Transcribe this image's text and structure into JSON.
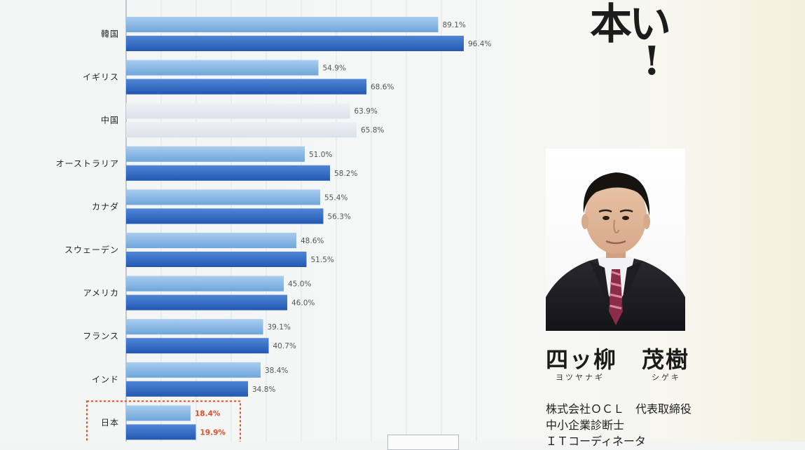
{
  "chart_data": {
    "type": "bar",
    "orientation": "horizontal",
    "categories": [
      "韓国",
      "イギリス",
      "中国",
      "オーストラリア",
      "カナダ",
      "スウェーデン",
      "アメリカ",
      "フランス",
      "インド",
      "日本"
    ],
    "series": [
      {
        "color_light": "#a9ccef",
        "color_dark": "#6fa6db",
        "values": [
          89.1,
          54.9,
          63.9,
          51.0,
          55.4,
          48.6,
          45.0,
          39.1,
          38.4,
          18.4
        ],
        "labels": [
          "89.1%",
          "54.9%",
          "63.9%",
          "51.0%",
          "55.4%",
          "48.6%",
          "45.0%",
          "39.1%",
          "38.4%",
          "18.4%"
        ]
      },
      {
        "color_light": "#4f86d6",
        "color_dark": "#2358b2",
        "values": [
          96.4,
          68.6,
          65.8,
          58.2,
          56.3,
          51.5,
          46.0,
          40.7,
          34.8,
          19.9
        ],
        "labels": [
          "96.4%",
          "68.6%",
          "65.8%",
          "58.2%",
          "56.3%",
          "51.5%",
          "46.0%",
          "40.7%",
          "34.8%",
          "19.9%"
        ]
      }
    ],
    "highlight_category": "日本",
    "highlight_color": "#d9502a",
    "muted_category": "中国",
    "muted_color": "#dde2ea",
    "xlim": [
      0,
      100
    ],
    "grid": true,
    "legend": "none"
  },
  "headline": {
    "text": "本い",
    "mark": "!"
  },
  "profile": {
    "photo_label": "portrait photo",
    "family_name": "四ッ柳",
    "given_name": "茂樹",
    "family_kana": "ヨツヤナギ",
    "given_kana": "シゲキ",
    "bio": [
      "株式会社ＯＣＬ　代表取締役",
      "中小企業診断士",
      "ＩＴコーディネータ"
    ]
  }
}
